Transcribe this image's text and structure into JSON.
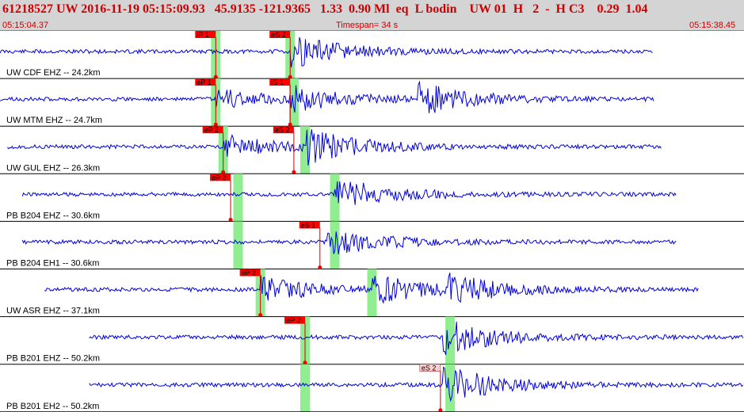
{
  "header": {
    "title": "61218527 UW 2016-11-19 05:15:09.93   45.9135 -121.9365   1.33  0.90 Ml  eq  L bodin    UW 01  H   2  -  H C3    0.29  1.04",
    "start_time": "05:15:04.37",
    "timespan": "Timespan=  34 s",
    "end_time": "05:15:38.45"
  },
  "colors": {
    "trace": "#0000dd",
    "pick_box": "#ff0000",
    "pick_box_alt": "#ffd0d0",
    "window": "#90ee90",
    "pick_line": "#cc0000",
    "separator": "#000000"
  },
  "traces": [
    {
      "label": "UW CDF EHZ -- 24.2km",
      "start": 0.0,
      "end": 0.878,
      "seed": 11,
      "picks": [
        {
          "label": "iP 1",
          "pos": 0.29,
          "style": "red"
        },
        {
          "label": "eS 2",
          "pos": 0.39,
          "style": "red"
        }
      ],
      "windows": [
        0.29,
        0.39
      ],
      "events": [
        [
          0.39,
          2.5
        ]
      ]
    },
    {
      "label": "UW MTM EHZ -- 24.7km",
      "start": 0.0,
      "end": 0.88,
      "seed": 23,
      "picks": [
        {
          "label": "eP 1",
          "pos": 0.29,
          "style": "red"
        },
        {
          "label": "iS 1",
          "pos": 0.39,
          "style": "red"
        }
      ],
      "windows": [
        0.29,
        0.395
      ],
      "events": [
        [
          0.29,
          1.6
        ],
        [
          0.39,
          1.8
        ],
        [
          0.56,
          2.4
        ]
      ]
    },
    {
      "label": "UW GUL EHZ -- 26.3km",
      "start": 0.01,
      "end": 0.89,
      "seed": 37,
      "picks": [
        {
          "label": "eP 2",
          "pos": 0.3,
          "style": "red"
        },
        {
          "label": "eS 2",
          "pos": 0.395,
          "style": "red"
        }
      ],
      "windows": [
        0.3,
        0.41
      ],
      "events": [
        [
          0.3,
          1.8
        ],
        [
          0.41,
          2.6
        ]
      ]
    },
    {
      "label": "PB B204 EHZ -- 30.6km",
      "start": 0.03,
      "end": 0.91,
      "seed": 41,
      "picks": [
        {
          "label": "eP 2",
          "pos": 0.31,
          "style": "red"
        }
      ],
      "windows": [
        0.32,
        0.45
      ],
      "events": [
        [
          0.45,
          2.6
        ]
      ]
    },
    {
      "label": "PB B204 EH1 -- 30.6km",
      "start": 0.03,
      "end": 0.91,
      "seed": 53,
      "picks": [
        {
          "label": "eS 1",
          "pos": 0.43,
          "style": "red"
        }
      ],
      "windows": [
        0.32,
        0.45
      ],
      "events": [
        [
          0.44,
          2.2
        ]
      ]
    },
    {
      "label": "UW ASR EHZ -- 37.1km",
      "start": 0.06,
      "end": 0.94,
      "seed": 67,
      "picks": [
        {
          "label": "eP 2",
          "pos": 0.35,
          "style": "red"
        }
      ],
      "windows": [
        0.35,
        0.5
      ],
      "events": [
        [
          0.35,
          2.0
        ],
        [
          0.5,
          2.2
        ],
        [
          0.6,
          2.0
        ]
      ]
    },
    {
      "label": "PB B201 EHZ -- 50.2km",
      "start": 0.12,
      "end": 1.0,
      "seed": 79,
      "picks": [
        {
          "label": "eP 2",
          "pos": 0.41,
          "style": "red"
        }
      ],
      "windows": [
        0.41,
        0.605
      ],
      "events": [
        [
          0.595,
          2.8
        ]
      ]
    },
    {
      "label": "PB B201 EH2 -- 50.2km",
      "start": 0.12,
      "end": 1.0,
      "seed": 83,
      "picks": [
        {
          "label": "eS 2",
          "pos": 0.592,
          "style": "pale"
        }
      ],
      "windows": [
        0.41,
        0.605
      ],
      "events": [
        [
          0.595,
          3.0
        ]
      ]
    }
  ]
}
